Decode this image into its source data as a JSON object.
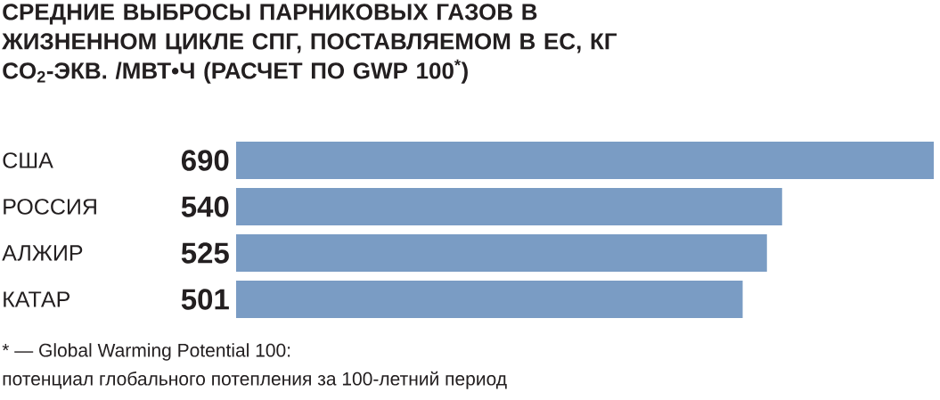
{
  "chart_data": {
    "type": "bar",
    "orientation": "horizontal",
    "title": "СРЕДНИЕ ВЫБРОСЫ ПАРНИКОВЫХ ГАЗОВ В ЖИЗНЕННОМ ЦИКЛЕ СПГ, ПОСТАВЛЯЕМОМ В ЕС, КГ CO$_{2}$-ЭКВ. /МВТ•Ч (РАСЧЕТ ПО GWP 100$^{*}$)",
    "categories": [
      "США",
      "РОССИЯ",
      "АЛЖИР",
      "КАТАР"
    ],
    "values": [
      690,
      540,
      525,
      501
    ],
    "color": "#7a9cc4",
    "data_labels": true,
    "annotations": [
      "* — Global Warming Potential 100:",
      "потенциал глобального потепления за 100-летний период"
    ]
  }
}
